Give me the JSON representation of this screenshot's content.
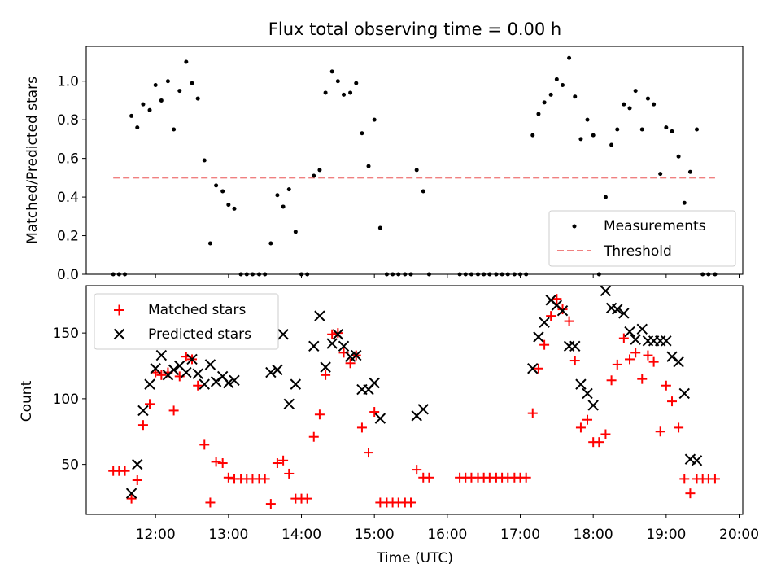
{
  "chart_data": [
    {
      "type": "scatter",
      "title": "Flux total observing time = 0.00 h",
      "xlabel": "",
      "ylabel": "Matched/Predicted stars",
      "ylim": [
        0,
        1.18
      ],
      "yticks": [
        0.0,
        0.2,
        0.4,
        0.6,
        0.8,
        1.0
      ],
      "ytick_labels": [
        "0.0",
        "0.2",
        "0.4",
        "0.6",
        "0.8",
        "1.0"
      ],
      "xlim_hours": [
        11.05,
        20.05
      ],
      "xtick_hours": [
        12,
        13,
        14,
        15,
        16,
        17,
        18,
        19,
        20
      ],
      "legend_position": "lower-right",
      "threshold": {
        "name": "Threshold",
        "y": 0.5,
        "x_range_hours": [
          11.42,
          19.67
        ],
        "color": "#f08080"
      },
      "series": [
        {
          "name": "Measurements",
          "color": "#000000",
          "x_hours": [
            11.42,
            11.5,
            11.58,
            11.67,
            11.75,
            11.83,
            11.92,
            12.0,
            12.08,
            12.17,
            12.25,
            12.33,
            12.42,
            12.5,
            12.58,
            12.67,
            12.75,
            12.83,
            12.92,
            13.0,
            13.08,
            13.17,
            13.25,
            13.33,
            13.42,
            13.5,
            13.58,
            13.67,
            13.75,
            13.83,
            13.92,
            14.0,
            14.08,
            14.17,
            14.25,
            14.33,
            14.42,
            14.5,
            14.58,
            14.67,
            14.75,
            14.83,
            14.92,
            15.0,
            15.08,
            15.17,
            15.25,
            15.33,
            15.42,
            15.5,
            15.58,
            15.67,
            15.75,
            16.17,
            16.25,
            16.33,
            16.42,
            16.5,
            16.58,
            16.67,
            16.75,
            16.83,
            16.92,
            17.0,
            17.08,
            17.17,
            17.25,
            17.33,
            17.42,
            17.5,
            17.58,
            17.67,
            17.75,
            17.83,
            17.92,
            18.0,
            18.08,
            18.17,
            18.25,
            18.33,
            18.42,
            18.5,
            18.58,
            18.67,
            18.75,
            18.83,
            18.92,
            19.0,
            19.08,
            19.17,
            19.25,
            19.33,
            19.42,
            19.5,
            19.58,
            19.67
          ],
          "y": [
            0.0,
            0.0,
            0.0,
            0.82,
            0.76,
            0.88,
            0.85,
            0.98,
            0.9,
            1.0,
            0.75,
            0.95,
            1.1,
            0.99,
            0.91,
            0.59,
            0.16,
            0.46,
            0.43,
            0.36,
            0.34,
            0.0,
            0.0,
            0.0,
            0.0,
            0.0,
            0.16,
            0.41,
            0.35,
            0.44,
            0.22,
            0.0,
            0.0,
            0.51,
            0.54,
            0.94,
            1.05,
            1.0,
            0.93,
            0.94,
            0.99,
            0.73,
            0.56,
            0.8,
            0.24,
            0.0,
            0.0,
            0.0,
            0.0,
            0.0,
            0.54,
            0.43,
            0.0,
            0.0,
            0.0,
            0.0,
            0.0,
            0.0,
            0.0,
            0.0,
            0.0,
            0.0,
            0.0,
            0.0,
            0.0,
            0.72,
            0.83,
            0.89,
            0.93,
            1.01,
            0.98,
            1.12,
            0.92,
            0.7,
            0.8,
            0.72,
            0.0,
            0.4,
            0.67,
            0.75,
            0.88,
            0.86,
            0.95,
            0.75,
            0.91,
            0.88,
            0.52,
            0.76,
            0.74,
            0.61,
            0.37,
            0.53,
            0.75,
            0.0,
            0.0,
            0.0
          ]
        }
      ]
    },
    {
      "type": "scatter",
      "title": "",
      "xlabel": "Time (UTC)",
      "ylabel": "Count",
      "ylim": [
        12,
        186
      ],
      "yticks": [
        50,
        100,
        150
      ],
      "ytick_labels": [
        "50",
        "100",
        "150"
      ],
      "xlim_hours": [
        11.05,
        20.05
      ],
      "xtick_hours": [
        12,
        13,
        14,
        15,
        16,
        17,
        18,
        19,
        20
      ],
      "xtick_labels": [
        "12:00",
        "13:00",
        "14:00",
        "15:00",
        "16:00",
        "17:00",
        "18:00",
        "19:00",
        "20:00"
      ],
      "legend_position": "upper-left",
      "series": [
        {
          "name": "Matched stars",
          "color": "#ff0000",
          "marker": "+",
          "x_hours": [
            11.42,
            11.5,
            11.58,
            11.67,
            11.75,
            11.83,
            11.92,
            12.0,
            12.08,
            12.17,
            12.25,
            12.33,
            12.42,
            12.5,
            12.58,
            12.67,
            12.75,
            12.83,
            12.92,
            13.0,
            13.08,
            13.17,
            13.25,
            13.33,
            13.42,
            13.5,
            13.58,
            13.67,
            13.75,
            13.83,
            13.92,
            14.0,
            14.08,
            14.17,
            14.25,
            14.33,
            14.42,
            14.5,
            14.58,
            14.67,
            14.75,
            14.83,
            14.92,
            15.0,
            15.08,
            15.17,
            15.25,
            15.33,
            15.42,
            15.5,
            15.58,
            15.67,
            15.75,
            16.17,
            16.25,
            16.33,
            16.42,
            16.5,
            16.58,
            16.67,
            16.75,
            16.83,
            16.92,
            17.0,
            17.08,
            17.17,
            17.25,
            17.33,
            17.42,
            17.5,
            17.58,
            17.67,
            17.75,
            17.83,
            17.92,
            18.0,
            18.08,
            18.17,
            18.25,
            18.33,
            18.42,
            18.5,
            18.58,
            18.67,
            18.75,
            18.83,
            18.92,
            19.0,
            19.08,
            19.17,
            19.25,
            19.33,
            19.42,
            19.5,
            19.58,
            19.67
          ],
          "y": [
            45,
            45,
            45,
            24,
            38,
            80,
            96,
            120,
            118,
            120,
            91,
            117,
            132,
            130,
            110,
            65,
            21,
            52,
            51,
            40,
            39,
            39,
            39,
            39,
            39,
            39,
            20,
            51,
            53,
            43,
            24,
            24,
            24,
            71,
            88,
            118,
            149,
            150,
            135,
            127,
            133,
            78,
            59,
            90,
            21,
            21,
            21,
            21,
            21,
            21,
            46,
            40,
            40,
            40,
            40,
            40,
            40,
            40,
            40,
            40,
            40,
            40,
            40,
            40,
            40,
            89,
            123,
            141,
            163,
            176,
            168,
            159,
            129,
            78,
            84,
            67,
            67,
            73,
            114,
            126,
            146,
            130,
            135,
            115,
            133,
            128,
            75,
            110,
            98,
            78,
            39,
            28,
            39,
            39,
            39,
            39
          ]
        },
        {
          "name": "Predicted stars",
          "color": "#000000",
          "marker": "x",
          "x_hours": [
            11.67,
            11.75,
            11.83,
            11.92,
            12.0,
            12.08,
            12.17,
            12.25,
            12.33,
            12.42,
            12.5,
            12.58,
            12.67,
            12.75,
            12.83,
            12.92,
            13.0,
            13.08,
            13.58,
            13.67,
            13.75,
            13.83,
            13.92,
            14.17,
            14.25,
            14.33,
            14.42,
            14.5,
            14.58,
            14.67,
            14.75,
            14.83,
            14.92,
            15.0,
            15.08,
            15.58,
            15.67,
            17.17,
            17.25,
            17.33,
            17.42,
            17.5,
            17.58,
            17.67,
            17.75,
            17.83,
            17.92,
            18.0,
            18.17,
            18.25,
            18.33,
            18.42,
            18.5,
            18.58,
            18.67,
            18.75,
            18.83,
            18.92,
            19.0,
            19.08,
            19.17,
            19.25,
            19.33,
            19.42
          ],
          "y": [
            28,
            50,
            91,
            111,
            123,
            133,
            118,
            122,
            125,
            120,
            130,
            119,
            111,
            126,
            113,
            117,
            112,
            114,
            120,
            122,
            149,
            96,
            111,
            140,
            163,
            124,
            142,
            149,
            140,
            132,
            133,
            107,
            107,
            112,
            85,
            87,
            92,
            123,
            147,
            158,
            175,
            171,
            167,
            140,
            140,
            111,
            104,
            95,
            182,
            169,
            168,
            165,
            151,
            145,
            153,
            144,
            144,
            144,
            144,
            132,
            128,
            104,
            54,
            53
          ]
        }
      ]
    }
  ]
}
